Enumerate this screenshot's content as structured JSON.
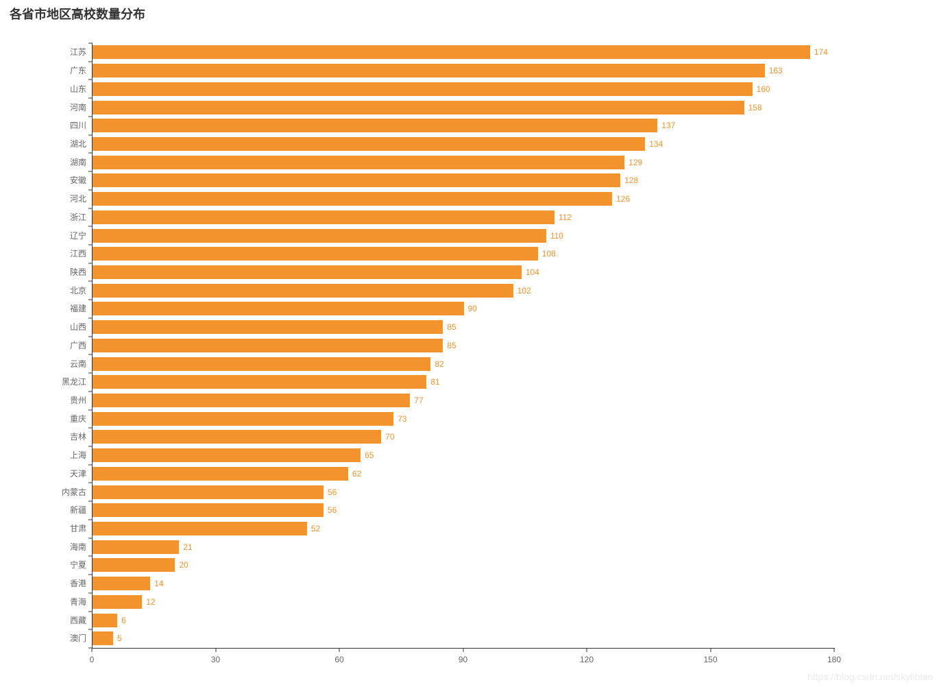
{
  "title": "各省市地区高校数量分布",
  "watermark": "https://blog.csdn.net/skylibiao",
  "colors": {
    "bar": "#F2932E",
    "value_label": "#F2932E",
    "axis_line": "#333333",
    "axis_label": "#666666",
    "title": "#333333",
    "watermark": "#EBEBEB"
  },
  "chart_data": {
    "type": "bar",
    "orientation": "horizontal",
    "title": "各省市地区高校数量分布",
    "xlabel": "",
    "ylabel": "",
    "categories": [
      "江苏",
      "广东",
      "山东",
      "河南",
      "四川",
      "湖北",
      "湖南",
      "安徽",
      "河北",
      "浙江",
      "辽宁",
      "江西",
      "陕西",
      "北京",
      "福建",
      "山西",
      "广西",
      "云南",
      "黑龙江",
      "贵州",
      "重庆",
      "吉林",
      "上海",
      "天津",
      "内蒙古",
      "新疆",
      "甘肃",
      "海南",
      "宁夏",
      "香港",
      "青海",
      "西藏",
      "澳门"
    ],
    "values": [
      174,
      163,
      160,
      158,
      137,
      134,
      129,
      128,
      126,
      112,
      110,
      108,
      104,
      102,
      90,
      85,
      85,
      82,
      81,
      77,
      73,
      70,
      65,
      62,
      56,
      56,
      52,
      21,
      20,
      14,
      12,
      6,
      5
    ],
    "xlim": [
      0,
      180
    ],
    "x_ticks": [
      0,
      30,
      60,
      90,
      120,
      150,
      180
    ],
    "grid": false,
    "legend": false,
    "value_labels": true
  }
}
